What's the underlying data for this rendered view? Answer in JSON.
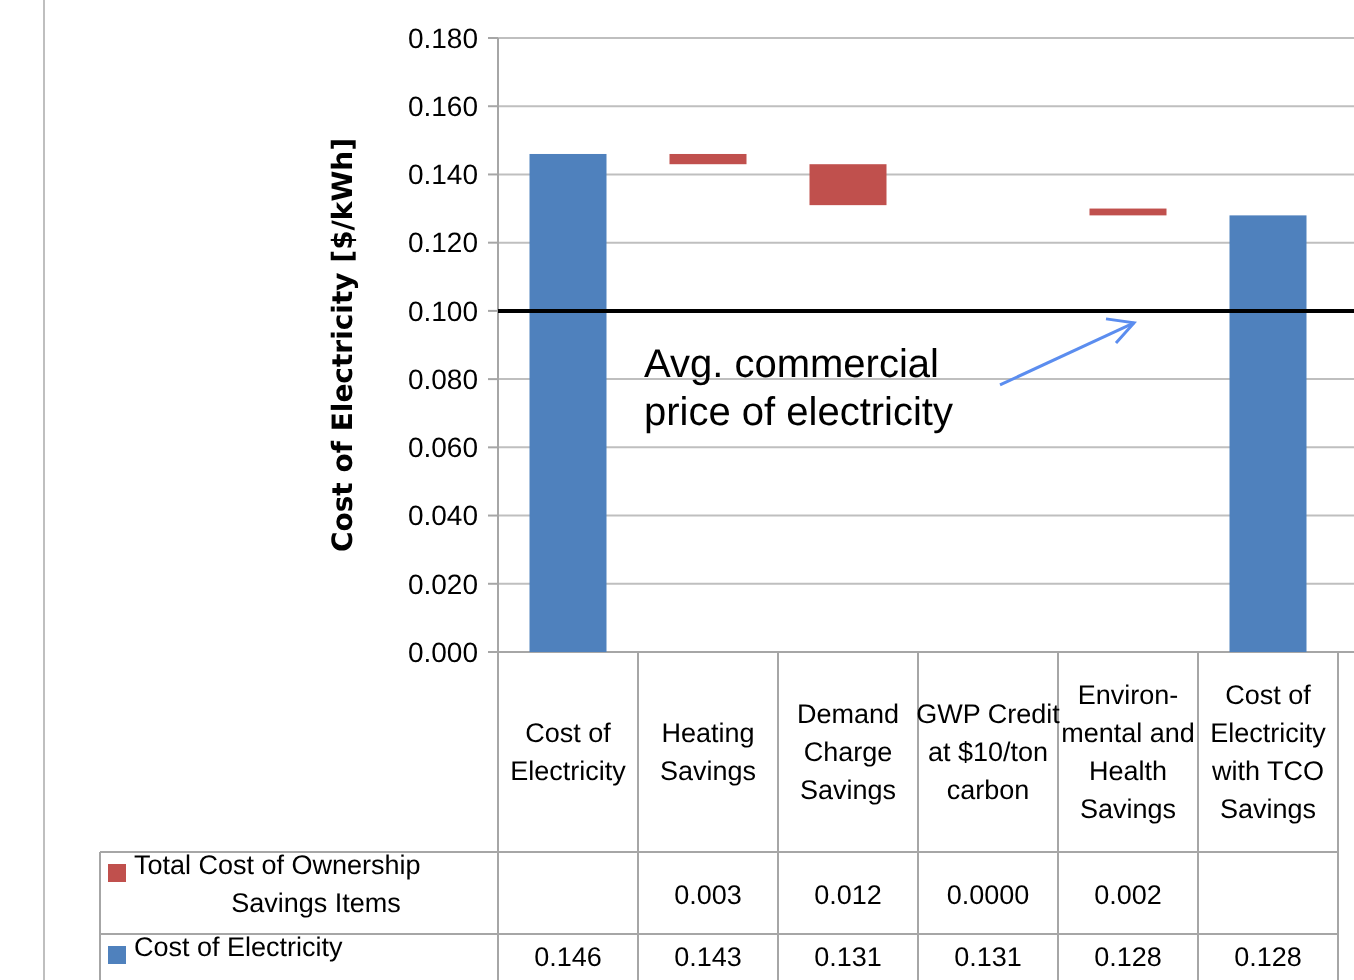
{
  "chart_data": {
    "type": "bar",
    "ylabel": "Cost of Electricity [$/kWh]",
    "categories": [
      "Cost of Electricity",
      "Heating Savings",
      "Demand Charge Savings",
      "GWP Credit at $10/ton carbon",
      "Environ-mental and Health Savings",
      "Cost of Electricity with TCO Savings"
    ],
    "series": [
      {
        "name": "Total Cost of Ownership Savings Items",
        "color": "#c0504d",
        "values": [
          null,
          0.003,
          0.012,
          0.0,
          0.002,
          null
        ],
        "base": [
          null,
          0.143,
          0.131,
          null,
          0.128,
          null
        ],
        "value_labels": [
          null,
          "0.003",
          "0.012",
          "0.0000",
          "0.002",
          null
        ]
      },
      {
        "name": "Cost of Electricity",
        "color": "#4f81bd",
        "values": [
          0.146,
          null,
          null,
          null,
          null,
          0.128
        ],
        "value_labels": [
          "0.146",
          "0.143",
          "0.131",
          "0.131",
          "0.128",
          "0.128"
        ]
      }
    ],
    "ylim": [
      0,
      0.18
    ],
    "yticks": [
      {
        "value": 0,
        "label": "0.000"
      },
      {
        "value": 0.02,
        "label": "0.020"
      },
      {
        "value": 0.04,
        "label": "0.040"
      },
      {
        "value": 0.06,
        "label": "0.060"
      },
      {
        "value": 0.08,
        "label": "0.080"
      },
      {
        "value": 0.1,
        "label": "0.100"
      },
      {
        "value": 0.12,
        "label": "0.120"
      },
      {
        "value": 0.14,
        "label": "0.140"
      },
      {
        "value": 0.16,
        "label": "0.160"
      },
      {
        "value": 0.18,
        "label": "0.180"
      }
    ],
    "grid": "y",
    "legend": "bottom",
    "ref_lines": [
      {
        "axis": "y",
        "value": 0.1,
        "label": "Avg. commercial price of electricity",
        "color": "#000000"
      }
    ]
  }
}
